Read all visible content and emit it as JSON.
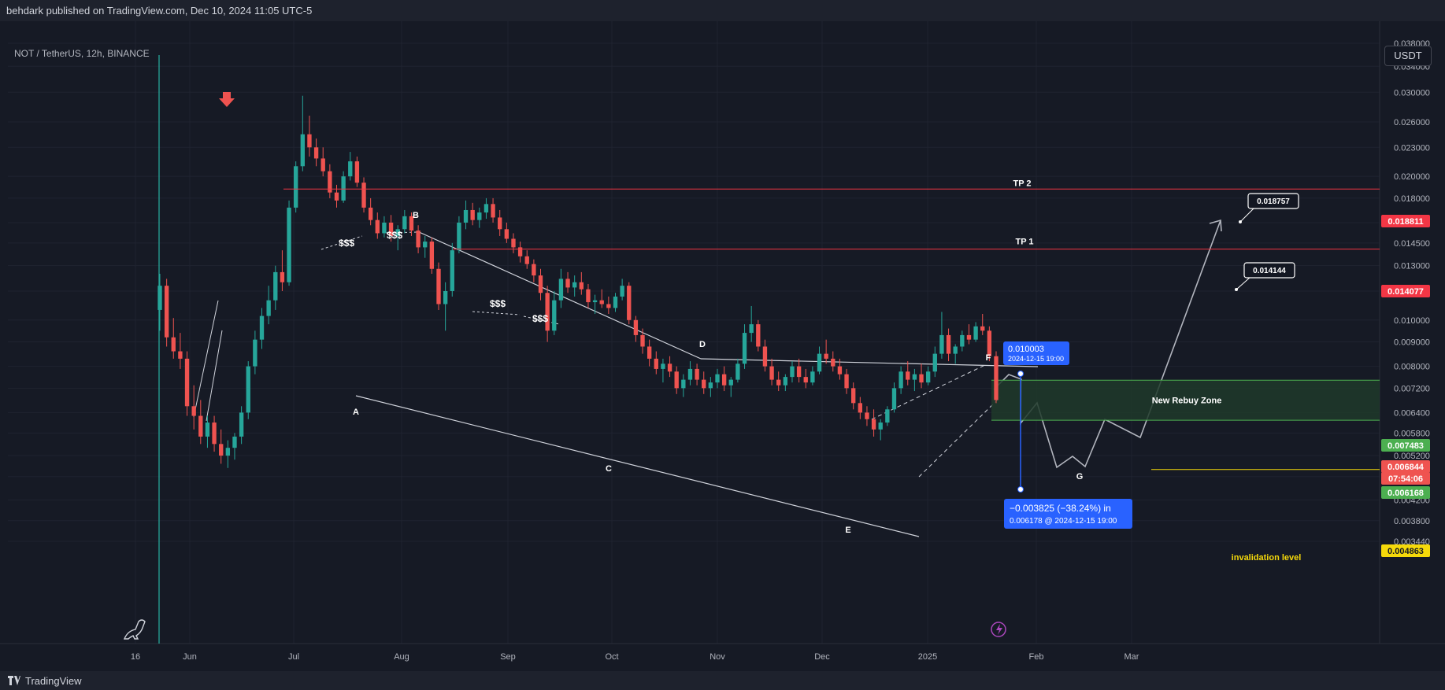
{
  "header": {
    "published_text": "behdark published on TradingView.com, Dec 10, 2024 11:05 UTC-5"
  },
  "symbol": {
    "description": "NOT / TetherUS, 12h, BINANCE"
  },
  "currency_button": "USDT",
  "footer": {
    "brand": "TradingView"
  },
  "colors": {
    "background": "#131722",
    "up": "#26a69a",
    "down": "#ef5350",
    "target_line": "#f23645",
    "zone_fill": "#1e3a2a",
    "zone_border": "#4caf50",
    "measure": "#2962ff",
    "invalidation": "#f5d90a",
    "pattern": "#d1d4dc"
  },
  "chart_data": {
    "type": "candlestick",
    "title": "NOT / TetherUS, 12h, BINANCE",
    "y_axis": {
      "scale": "log",
      "ticks": [
        "0.038000",
        "0.034000",
        "0.030000",
        "0.026000",
        "0.023000",
        "0.020000",
        "0.018000",
        "0.016000",
        "0.014500",
        "0.013000",
        "0.011500",
        "0.010000",
        "0.009000",
        "0.008000",
        "0.007200",
        "0.006400",
        "0.005800",
        "0.005200",
        "0.004700",
        "0.004200",
        "0.003800",
        "0.003440"
      ]
    },
    "x_axis": {
      "ticks": [
        "16",
        "Jun",
        "Jul",
        "Aug",
        "Sep",
        "Oct",
        "Nov",
        "Dec",
        "2025",
        "Feb",
        "Mar"
      ]
    },
    "grid": true,
    "price_labels": [
      {
        "value": "0.018811",
        "color": "#f23645"
      },
      {
        "value": "0.014077",
        "color": "#f23645"
      },
      {
        "value": "0.007483",
        "color": "#4caf50"
      },
      {
        "value": "0.006844",
        "color": "#ef5350"
      },
      {
        "value": "07:54:06",
        "color": "#ef5350"
      },
      {
        "value": "0.006168",
        "color": "#4caf50"
      },
      {
        "value": "0.004863",
        "color": "#f5d90a"
      }
    ],
    "horizontal_levels": [
      {
        "label": "TP 2",
        "price": 0.018811
      },
      {
        "label": "TP 1",
        "price": 0.014077
      },
      {
        "label": "invalidation level",
        "price": 0.004863
      }
    ],
    "zone": {
      "label": "New Rebuy Zone",
      "top": 0.007483,
      "bottom": 0.006168
    },
    "targets": [
      {
        "text": "0.018757"
      },
      {
        "text": "0.014144"
      }
    ],
    "measure": {
      "top_value": "0.010003",
      "top_time": "2024-12-15  19:00",
      "change": "−0.003825 (−38.24%) in",
      "bottom_value": "0.006178",
      "bottom_time": "2024-12-15  19:00"
    },
    "wave_labels": [
      "A",
      "B",
      "C",
      "D",
      "E",
      "F",
      "G",
      "E"
    ],
    "liquidity_marks": [
      "$$$",
      "$$$",
      "$$$",
      "$$$"
    ],
    "candles": [
      [
        0.0105,
        0.0125,
        0.0095,
        0.0118
      ],
      [
        0.0118,
        0.0122,
        0.0088,
        0.0092
      ],
      [
        0.0092,
        0.0101,
        0.0083,
        0.0086
      ],
      [
        0.0086,
        0.0094,
        0.0079,
        0.0083
      ],
      [
        0.0083,
        0.0086,
        0.0063,
        0.0066
      ],
      [
        0.0066,
        0.0073,
        0.0059,
        0.0063
      ],
      [
        0.0063,
        0.0068,
        0.0055,
        0.0057
      ],
      [
        0.0057,
        0.0063,
        0.0054,
        0.0061
      ],
      [
        0.0061,
        0.0063,
        0.0053,
        0.0055
      ],
      [
        0.0055,
        0.0059,
        0.005,
        0.0052
      ],
      [
        0.0052,
        0.0056,
        0.0049,
        0.0054
      ],
      [
        0.0054,
        0.0058,
        0.0051,
        0.0057
      ],
      [
        0.0057,
        0.0066,
        0.0055,
        0.0064
      ],
      [
        0.0064,
        0.0082,
        0.0062,
        0.008
      ],
      [
        0.008,
        0.0095,
        0.0077,
        0.0091
      ],
      [
        0.0091,
        0.0106,
        0.0087,
        0.0102
      ],
      [
        0.0102,
        0.0118,
        0.0098,
        0.011
      ],
      [
        0.011,
        0.013,
        0.0105,
        0.0126
      ],
      [
        0.0126,
        0.014,
        0.0115,
        0.012
      ],
      [
        0.012,
        0.0178,
        0.0118,
        0.0172
      ],
      [
        0.0172,
        0.0215,
        0.0168,
        0.021
      ],
      [
        0.021,
        0.0295,
        0.0205,
        0.0245
      ],
      [
        0.0245,
        0.0268,
        0.022,
        0.023
      ],
      [
        0.023,
        0.024,
        0.021,
        0.0218
      ],
      [
        0.0218,
        0.023,
        0.02,
        0.0205
      ],
      [
        0.0205,
        0.0212,
        0.018,
        0.0185
      ],
      [
        0.0185,
        0.0192,
        0.0172,
        0.0178
      ],
      [
        0.0178,
        0.0205,
        0.0176,
        0.02
      ],
      [
        0.02,
        0.0225,
        0.0196,
        0.0215
      ],
      [
        0.0215,
        0.022,
        0.019,
        0.0194
      ],
      [
        0.0194,
        0.0199,
        0.0168,
        0.0172
      ],
      [
        0.0172,
        0.018,
        0.0158,
        0.0162
      ],
      [
        0.0162,
        0.0168,
        0.0148,
        0.0152
      ],
      [
        0.0152,
        0.0165,
        0.0149,
        0.016
      ],
      [
        0.016,
        0.0166,
        0.0146,
        0.015
      ],
      [
        0.015,
        0.0158,
        0.014,
        0.0155
      ],
      [
        0.0155,
        0.017,
        0.0152,
        0.0165
      ],
      [
        0.0165,
        0.0168,
        0.015,
        0.0154
      ],
      [
        0.0154,
        0.0158,
        0.0138,
        0.0142
      ],
      [
        0.0142,
        0.015,
        0.0135,
        0.0146
      ],
      [
        0.0146,
        0.0149,
        0.0125,
        0.0128
      ],
      [
        0.0128,
        0.0132,
        0.0105,
        0.0108
      ],
      [
        0.0108,
        0.012,
        0.0095,
        0.0115
      ],
      [
        0.0115,
        0.0145,
        0.0112,
        0.014
      ],
      [
        0.014,
        0.0165,
        0.0138,
        0.016
      ],
      [
        0.016,
        0.0178,
        0.0155,
        0.017
      ],
      [
        0.017,
        0.0176,
        0.0158,
        0.0162
      ],
      [
        0.0162,
        0.0172,
        0.0156,
        0.0168
      ],
      [
        0.0168,
        0.018,
        0.0163,
        0.0175
      ],
      [
        0.0175,
        0.018,
        0.016,
        0.0164
      ],
      [
        0.0164,
        0.017,
        0.015,
        0.0155
      ],
      [
        0.0155,
        0.016,
        0.0145,
        0.0148
      ],
      [
        0.0148,
        0.0152,
        0.0138,
        0.0142
      ],
      [
        0.0142,
        0.0146,
        0.0132,
        0.0136
      ],
      [
        0.0136,
        0.014,
        0.0128,
        0.0131
      ],
      [
        0.0131,
        0.0134,
        0.012,
        0.0124
      ],
      [
        0.0124,
        0.0128,
        0.011,
        0.0114
      ],
      [
        0.0114,
        0.0118,
        0.009,
        0.0095
      ],
      [
        0.0095,
        0.0115,
        0.0093,
        0.011
      ],
      [
        0.011,
        0.0128,
        0.0106,
        0.0122
      ],
      [
        0.0122,
        0.0126,
        0.0114,
        0.0117
      ],
      [
        0.0117,
        0.0124,
        0.0112,
        0.012
      ],
      [
        0.012,
        0.0126,
        0.0113,
        0.0116
      ],
      [
        0.0116,
        0.0119,
        0.0106,
        0.0109
      ],
      [
        0.0109,
        0.0113,
        0.0103,
        0.011
      ],
      [
        0.011,
        0.0116,
        0.0106,
        0.0108
      ],
      [
        0.0108,
        0.0112,
        0.0103,
        0.0106
      ],
      [
        0.0106,
        0.0114,
        0.0104,
        0.0112
      ],
      [
        0.0112,
        0.0122,
        0.011,
        0.0118
      ],
      [
        0.0118,
        0.012,
        0.0098,
        0.01
      ],
      [
        0.01,
        0.0102,
        0.009,
        0.0093
      ],
      [
        0.0093,
        0.0096,
        0.0085,
        0.0088
      ],
      [
        0.0088,
        0.0091,
        0.008,
        0.0083
      ],
      [
        0.0083,
        0.0086,
        0.0077,
        0.0079
      ],
      [
        0.0079,
        0.0083,
        0.0074,
        0.0081
      ],
      [
        0.0081,
        0.0084,
        0.0076,
        0.0078
      ],
      [
        0.0078,
        0.008,
        0.007,
        0.0072
      ],
      [
        0.0072,
        0.0077,
        0.0069,
        0.0075
      ],
      [
        0.0075,
        0.0082,
        0.0073,
        0.0079
      ],
      [
        0.0079,
        0.0081,
        0.0073,
        0.0075
      ],
      [
        0.0075,
        0.0078,
        0.007,
        0.0072
      ],
      [
        0.0072,
        0.0076,
        0.0069,
        0.0074
      ],
      [
        0.0074,
        0.0079,
        0.0072,
        0.0077
      ],
      [
        0.0077,
        0.008,
        0.0071,
        0.0073
      ],
      [
        0.0073,
        0.0076,
        0.0069,
        0.0075
      ],
      [
        0.0075,
        0.0083,
        0.0074,
        0.0081
      ],
      [
        0.0081,
        0.0098,
        0.0079,
        0.0094
      ],
      [
        0.0094,
        0.0107,
        0.009,
        0.0098
      ],
      [
        0.0098,
        0.01,
        0.0086,
        0.0088
      ],
      [
        0.0088,
        0.0091,
        0.0078,
        0.008
      ],
      [
        0.008,
        0.0083,
        0.0073,
        0.0075
      ],
      [
        0.0075,
        0.0078,
        0.0071,
        0.0073
      ],
      [
        0.0073,
        0.0077,
        0.0071,
        0.0076
      ],
      [
        0.0076,
        0.0082,
        0.0074,
        0.008
      ],
      [
        0.008,
        0.0083,
        0.0074,
        0.0076
      ],
      [
        0.0076,
        0.0079,
        0.0072,
        0.0074
      ],
      [
        0.0074,
        0.008,
        0.0073,
        0.0078
      ],
      [
        0.0078,
        0.0088,
        0.0077,
        0.0085
      ],
      [
        0.0085,
        0.0091,
        0.0081,
        0.0083
      ],
      [
        0.0083,
        0.0086,
        0.0078,
        0.008
      ],
      [
        0.008,
        0.0083,
        0.0075,
        0.0077
      ],
      [
        0.0077,
        0.0079,
        0.007,
        0.0072
      ],
      [
        0.0072,
        0.0074,
        0.0065,
        0.0067
      ],
      [
        0.0067,
        0.0069,
        0.0062,
        0.0064
      ],
      [
        0.0064,
        0.0066,
        0.006,
        0.0062
      ],
      [
        0.0062,
        0.0065,
        0.0057,
        0.0059
      ],
      [
        0.0059,
        0.0062,
        0.0056,
        0.0061
      ],
      [
        0.0061,
        0.0066,
        0.006,
        0.0065
      ],
      [
        0.0065,
        0.0074,
        0.0064,
        0.0072
      ],
      [
        0.0072,
        0.008,
        0.007,
        0.0078
      ],
      [
        0.0078,
        0.0082,
        0.0073,
        0.0075
      ],
      [
        0.0075,
        0.0079,
        0.0071,
        0.0077
      ],
      [
        0.0077,
        0.0081,
        0.0072,
        0.0074
      ],
      [
        0.0074,
        0.008,
        0.0073,
        0.0078
      ],
      [
        0.0078,
        0.0088,
        0.0076,
        0.0085
      ],
      [
        0.0085,
        0.0104,
        0.0083,
        0.0093
      ],
      [
        0.0093,
        0.0096,
        0.0082,
        0.0085
      ],
      [
        0.0085,
        0.0089,
        0.0081,
        0.0088
      ],
      [
        0.0088,
        0.0095,
        0.0086,
        0.0093
      ],
      [
        0.0093,
        0.0098,
        0.0089,
        0.0091
      ],
      [
        0.0091,
        0.0099,
        0.009,
        0.0097
      ],
      [
        0.0097,
        0.0103,
        0.0093,
        0.0095
      ],
      [
        0.0095,
        0.0097,
        0.0082,
        0.0084
      ],
      [
        0.0084,
        0.0086,
        0.0067,
        0.0068
      ]
    ]
  }
}
